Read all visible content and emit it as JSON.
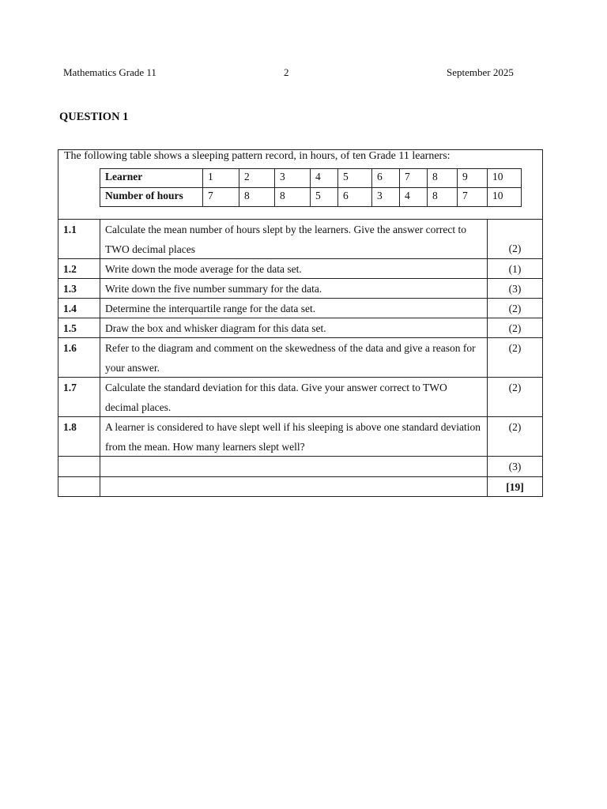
{
  "header": {
    "subject": "Mathematics Grade 11",
    "page": "2",
    "date": "September 2025"
  },
  "question_title": "QUESTION 1",
  "intro": "The following table shows a sleeping pattern record, in hours, of ten Grade 11 learners:",
  "data_table": {
    "row_headers": [
      "Learner",
      "Number of hours"
    ],
    "learners": [
      "1",
      "2",
      "3",
      "4",
      "5",
      "6",
      "7",
      "8",
      "9",
      "10"
    ],
    "hours": [
      "7",
      "8",
      "8",
      "5",
      "6",
      "3",
      "4",
      "8",
      "7",
      "10"
    ]
  },
  "questions": [
    {
      "num": "1.1",
      "text": "Calculate the mean number of hours slept by the learners. Give the answer correct to TWO decimal places",
      "marks": "(2)"
    },
    {
      "num": "1.2",
      "text": "Write down the mode average for the data set.",
      "marks": "(1)"
    },
    {
      "num": "1.3",
      "text": "Write down the five number summary for the data.",
      "marks": "(3)"
    },
    {
      "num": "1.4",
      "text": "Determine the interquartile range for the data set.",
      "marks": "(2)"
    },
    {
      "num": "1.5",
      "text": "Draw the box and whisker diagram for this data set.",
      "marks": "(2)"
    },
    {
      "num": "1.6",
      "text": "Refer to the diagram and comment on the skewedness of the data and give a reason for your answer.",
      "marks": "(2)"
    },
    {
      "num": "1.7",
      "text": "Calculate the standard deviation for this data. Give your answer correct to TWO decimal places.",
      "marks": "(2)"
    },
    {
      "num": "1.8",
      "text": "A learner is considered to have slept well if his sleeping is above one standard deviation from the mean. How many learners slept well?",
      "marks": "(2)"
    },
    {
      "num": "",
      "text": "",
      "marks": "(3)"
    }
  ],
  "total": "[19]"
}
